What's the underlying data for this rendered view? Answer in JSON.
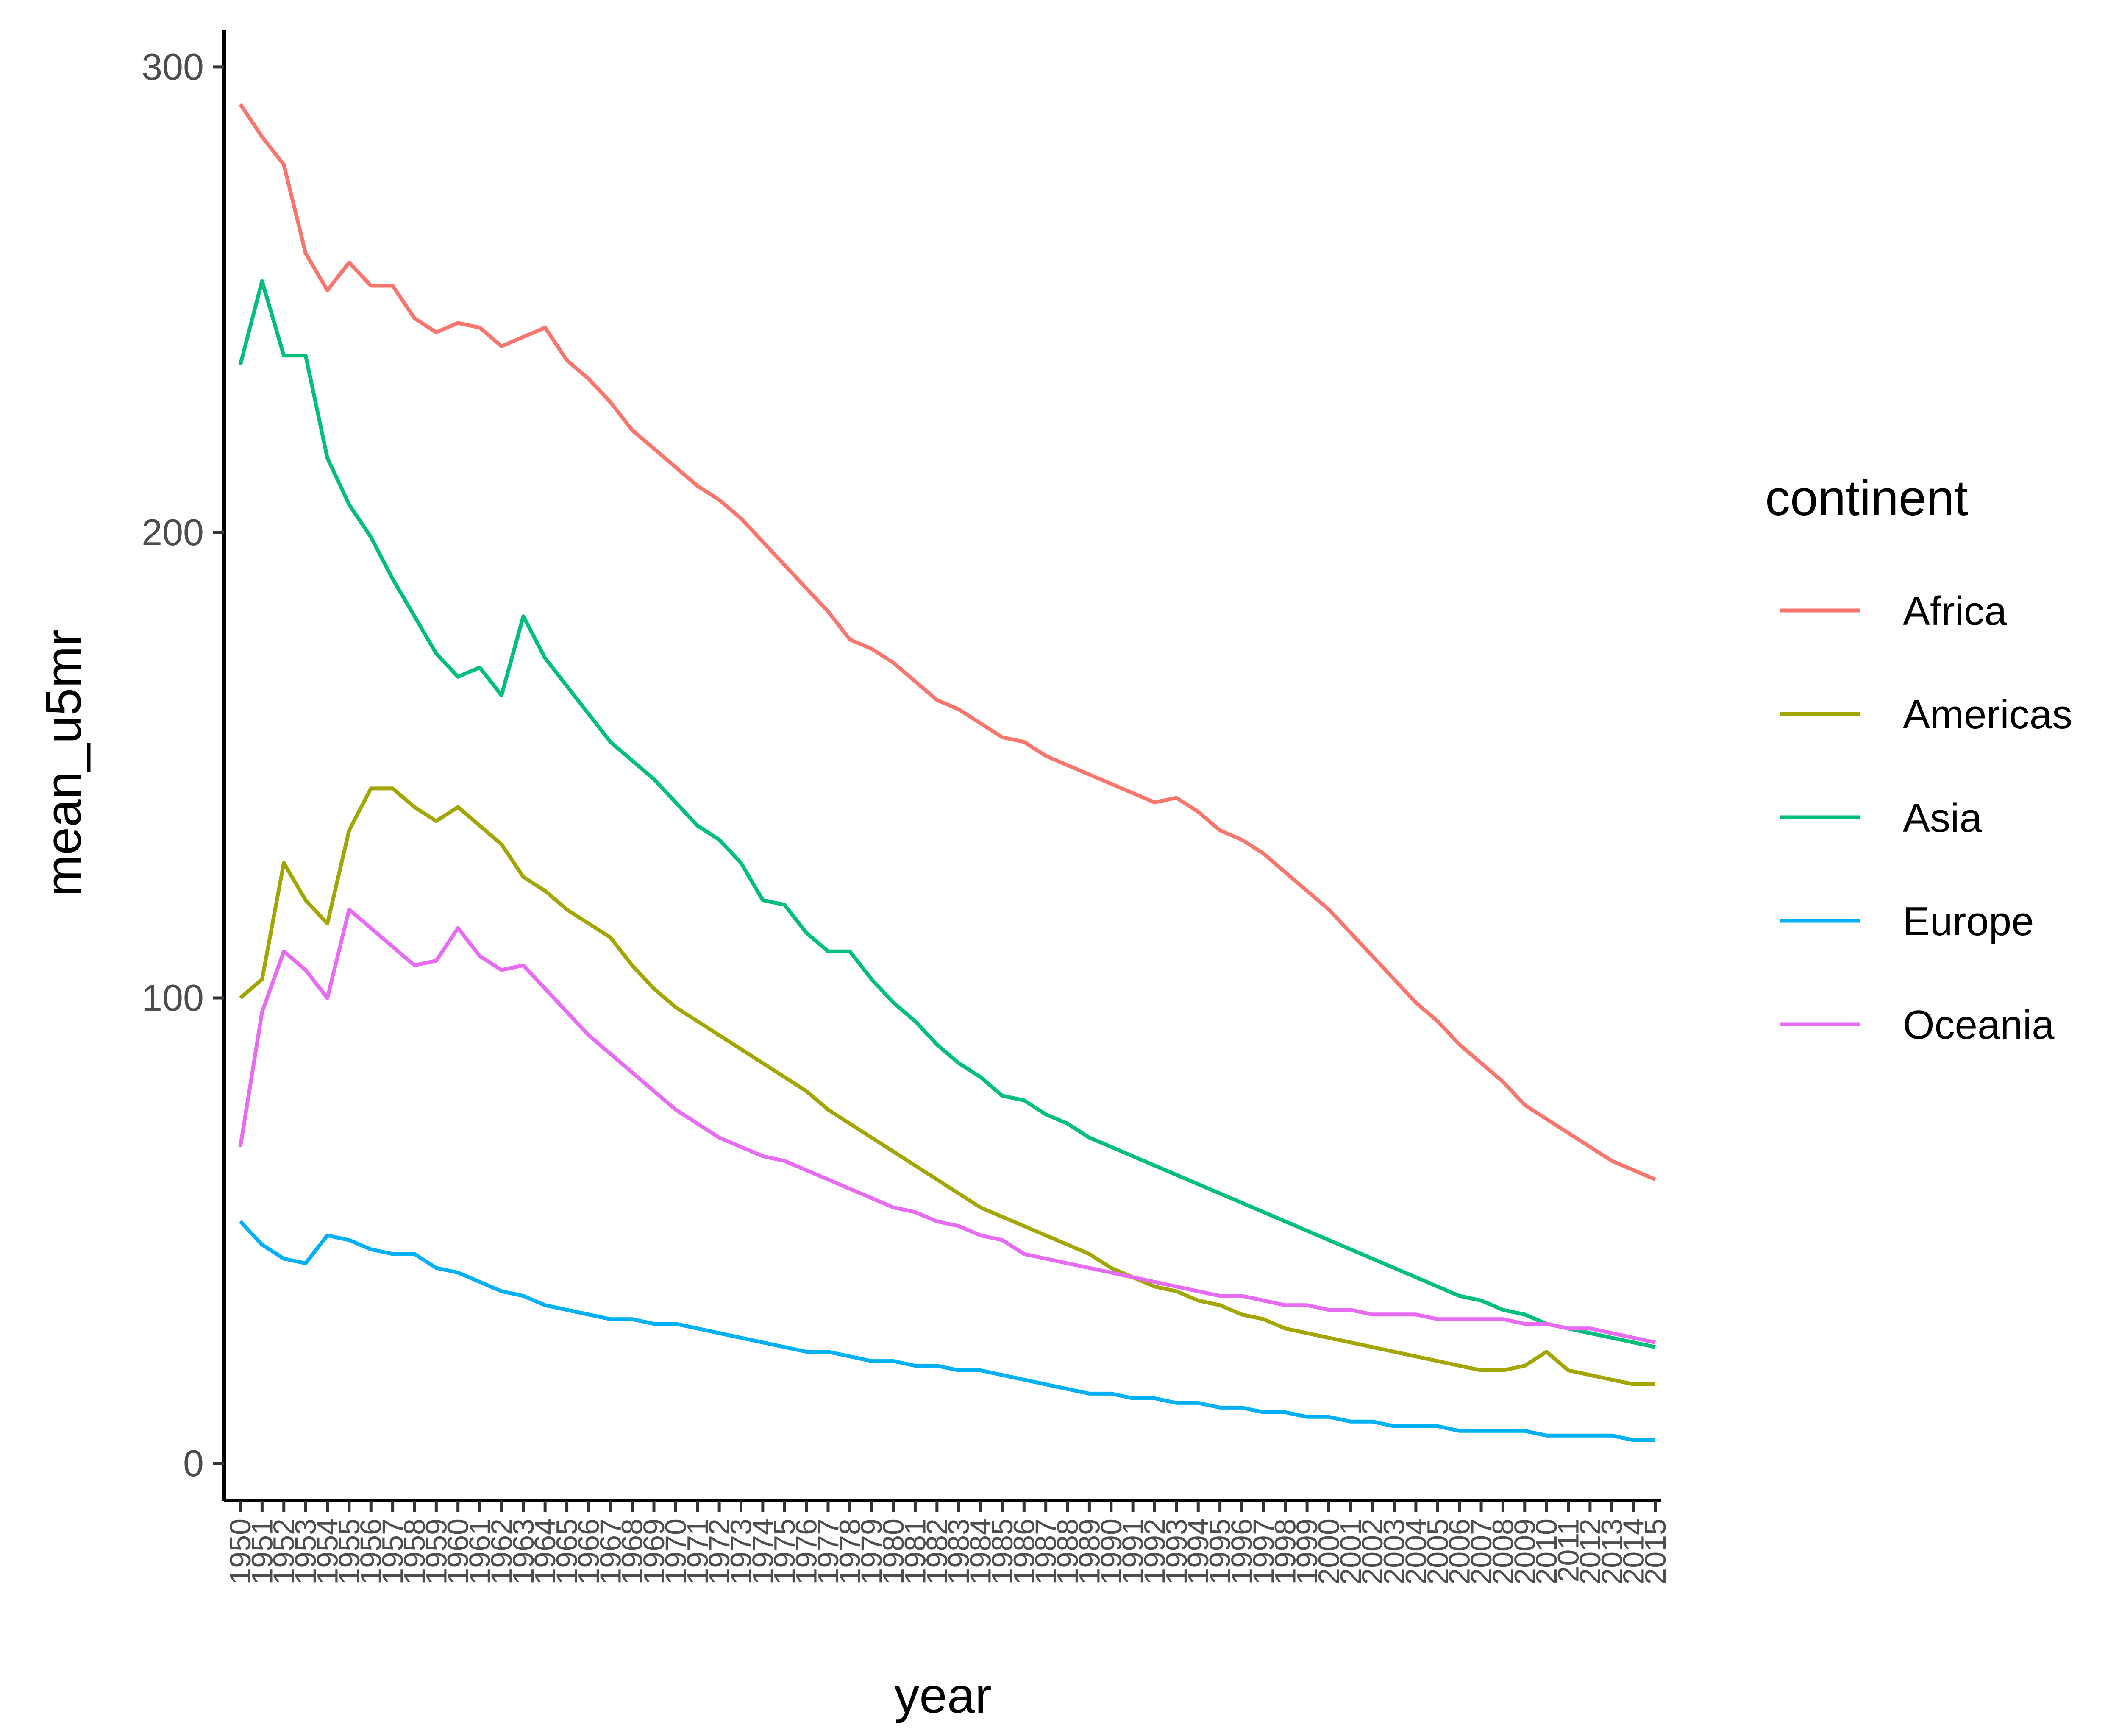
{
  "chart_data": {
    "type": "line",
    "xlabel": "year",
    "ylabel": "mean_u5mr",
    "xlim": [
      1950,
      2015
    ],
    "ylim": [
      -8,
      308
    ],
    "yticks": [
      0,
      100,
      200,
      300
    ],
    "xticks": [
      1950,
      1951,
      1952,
      1953,
      1954,
      1955,
      1956,
      1957,
      1958,
      1959,
      1960,
      1961,
      1962,
      1963,
      1964,
      1965,
      1966,
      1967,
      1968,
      1969,
      1970,
      1971,
      1972,
      1973,
      1974,
      1975,
      1976,
      1977,
      1978,
      1979,
      1980,
      1981,
      1982,
      1983,
      1984,
      1985,
      1986,
      1987,
      1988,
      1989,
      1990,
      1991,
      1992,
      1993,
      1994,
      1995,
      1996,
      1997,
      1998,
      1999,
      2000,
      2001,
      2002,
      2003,
      2004,
      2005,
      2006,
      2007,
      2008,
      2009,
      2010,
      2011,
      2012,
      2013,
      2014,
      2015
    ],
    "grid": false,
    "legend": {
      "title": "continent",
      "position": "right"
    },
    "x": [
      1950,
      1951,
      1952,
      1953,
      1954,
      1955,
      1956,
      1957,
      1958,
      1959,
      1960,
      1961,
      1962,
      1963,
      1964,
      1965,
      1966,
      1967,
      1968,
      1969,
      1970,
      1971,
      1972,
      1973,
      1974,
      1975,
      1976,
      1977,
      1978,
      1979,
      1980,
      1981,
      1982,
      1983,
      1984,
      1985,
      1986,
      1987,
      1988,
      1989,
      1990,
      1991,
      1992,
      1993,
      1994,
      1995,
      1996,
      1997,
      1998,
      1999,
      2000,
      2001,
      2002,
      2003,
      2004,
      2005,
      2006,
      2007,
      2008,
      2009,
      2010,
      2011,
      2012,
      2013,
      2014,
      2015
    ],
    "series": [
      {
        "name": "Africa",
        "color": "#F8766D",
        "values": [
          292,
          285,
          279,
          260,
          252,
          258,
          253,
          253,
          246,
          243,
          245,
          244,
          240,
          242,
          244,
          237,
          233,
          228,
          222,
          218,
          214,
          210,
          207,
          203,
          198,
          193,
          188,
          183,
          177,
          175,
          172,
          168,
          164,
          162,
          159,
          156,
          155,
          152,
          150,
          148,
          146,
          144,
          142,
          143,
          140,
          136,
          134,
          131,
          127,
          123,
          119,
          114,
          109,
          104,
          99,
          95,
          90,
          86,
          82,
          77,
          74,
          71,
          68,
          65,
          63,
          61
        ]
      },
      {
        "name": "Americas",
        "color": "#A3A500",
        "values": [
          100,
          104,
          129,
          121,
          116,
          136,
          145,
          145,
          141,
          138,
          141,
          137,
          133,
          126,
          123,
          119,
          116,
          113,
          107,
          102,
          98,
          95,
          92,
          89,
          86,
          83,
          80,
          76,
          73,
          70,
          67,
          64,
          61,
          58,
          55,
          53,
          51,
          49,
          47,
          45,
          42,
          40,
          38,
          37,
          35,
          34,
          32,
          31,
          29,
          28,
          27,
          26,
          25,
          24,
          23,
          22,
          21,
          20,
          20,
          21,
          24,
          20,
          19,
          18,
          17,
          17
        ]
      },
      {
        "name": "Asia",
        "color": "#00BF7D",
        "values": [
          236,
          254,
          238,
          238,
          216,
          206,
          199,
          190,
          182,
          174,
          169,
          171,
          165,
          182,
          173,
          167,
          161,
          155,
          151,
          147,
          142,
          137,
          134,
          129,
          121,
          120,
          114,
          110,
          110,
          104,
          99,
          95,
          90,
          86,
          83,
          79,
          78,
          75,
          73,
          70,
          68,
          66,
          64,
          62,
          60,
          58,
          56,
          54,
          52,
          50,
          48,
          46,
          44,
          42,
          40,
          38,
          36,
          35,
          33,
          32,
          30,
          29,
          28,
          27,
          26,
          25
        ]
      },
      {
        "name": "Europe",
        "color": "#00B0F6",
        "values": [
          52,
          47,
          44,
          43,
          49,
          48,
          46,
          45,
          45,
          42,
          41,
          39,
          37,
          36,
          34,
          33,
          32,
          31,
          31,
          30,
          30,
          29,
          28,
          27,
          26,
          25,
          24,
          24,
          23,
          22,
          22,
          21,
          21,
          20,
          20,
          19,
          18,
          17,
          16,
          15,
          15,
          14,
          14,
          13,
          13,
          12,
          12,
          11,
          11,
          10,
          10,
          9,
          9,
          8,
          8,
          8,
          7,
          7,
          7,
          7,
          6,
          6,
          6,
          6,
          5,
          5
        ]
      },
      {
        "name": "Oceania",
        "color": "#E76BF3",
        "values": [
          68,
          97,
          110,
          106,
          100,
          119,
          115,
          111,
          107,
          108,
          115,
          109,
          106,
          107,
          102,
          97,
          92,
          88,
          84,
          80,
          76,
          73,
          70,
          68,
          66,
          65,
          63,
          61,
          59,
          57,
          55,
          54,
          52,
          51,
          49,
          48,
          45,
          44,
          43,
          42,
          41,
          40,
          39,
          38,
          37,
          36,
          36,
          35,
          34,
          34,
          33,
          33,
          32,
          32,
          32,
          31,
          31,
          31,
          31,
          30,
          30,
          29,
          29,
          28,
          27,
          26
        ]
      }
    ]
  }
}
